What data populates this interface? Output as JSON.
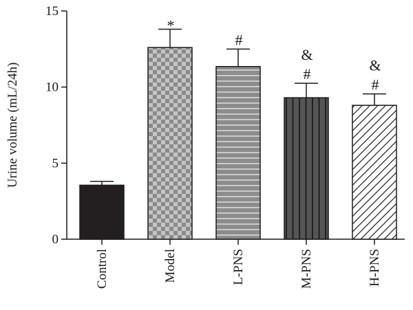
{
  "chart_data": {
    "type": "bar",
    "title": "",
    "xlabel": "",
    "ylabel": "Urine volume (mL/24h)",
    "ylim": [
      0,
      15
    ],
    "yticks": [
      0,
      5,
      10,
      15
    ],
    "grid": false,
    "categories": [
      "Control",
      "Model",
      "L-PNS",
      "M-PNS",
      "H-PNS"
    ],
    "values": [
      3.55,
      12.6,
      11.35,
      9.3,
      8.8
    ],
    "errors": [
      0.25,
      1.2,
      1.15,
      0.95,
      0.75
    ],
    "annotations": [
      [
        "*"
      ],
      [
        "#"
      ],
      [
        "&",
        "#"
      ],
      [
        "&",
        "#"
      ]
    ],
    "annotation_targets": [
      1,
      2,
      3,
      4
    ],
    "patterns": [
      "solid",
      "checker",
      "horizontal-lines",
      "vertical-lines",
      "diagonal-lines"
    ],
    "colors": {
      "control": "#231f20",
      "checker_dark": "#8a8a8a",
      "checker_light": "#c4c4c4",
      "lpns_fill": "#8c8c8c",
      "lpns_line": "#d9d9d9",
      "mpns_fill": "#555555",
      "mpns_line": "#1a1a1a",
      "hpns_fill": "#ffffff",
      "hpns_line": "#1a1a1a",
      "axis": "#1a1a1a"
    }
  }
}
